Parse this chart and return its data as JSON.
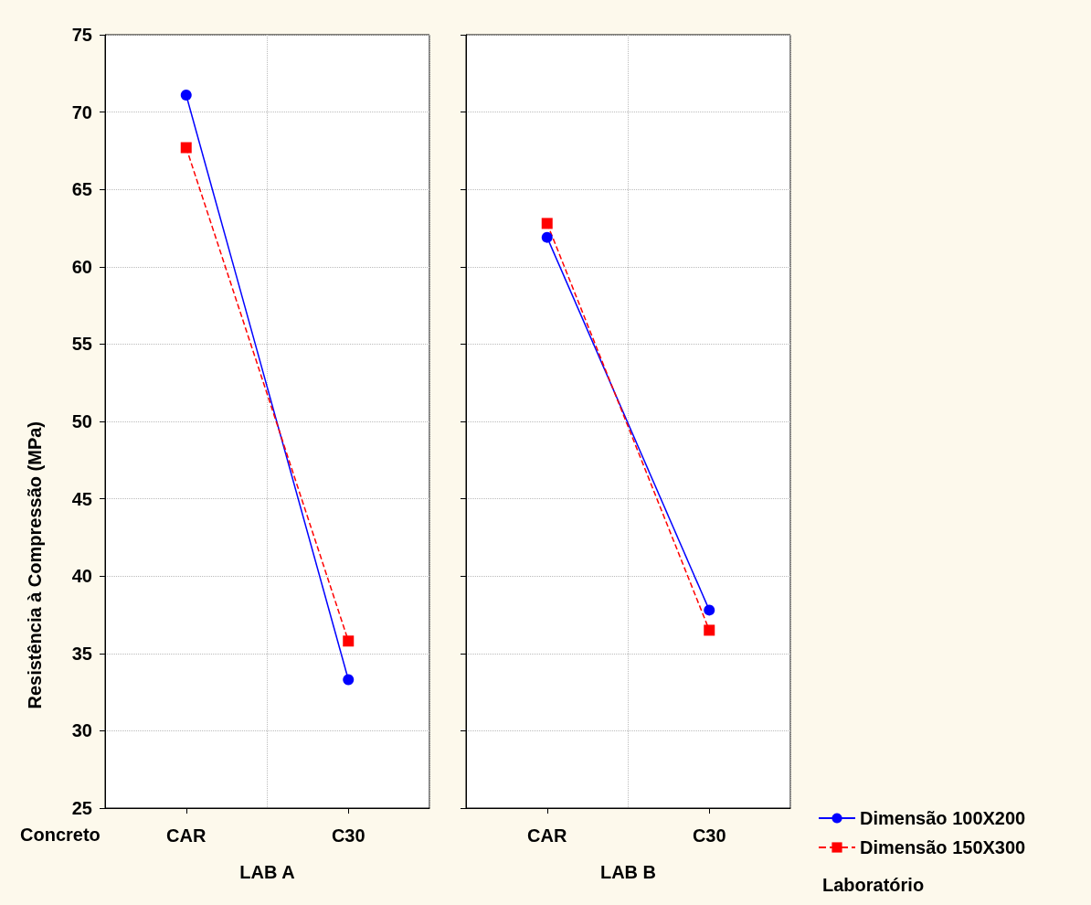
{
  "chart_data": [
    {
      "type": "line",
      "xlabel": "LAB A",
      "categories": [
        "CAR",
        "C30"
      ],
      "ylabel": "Resistência à Compressão (MPa)",
      "ylim": [
        25,
        75
      ],
      "yticks": [
        25,
        30,
        35,
        40,
        45,
        50,
        55,
        60,
        65,
        70,
        75
      ],
      "grid": true,
      "legend": false,
      "annotations": [
        "Concreto"
      ],
      "series": [
        {
          "color": "#0000ff",
          "values": [
            71.1,
            33.3
          ],
          "marker": "circle",
          "line_style": "solid"
        },
        {
          "color": "#ff0000",
          "values": [
            67.7,
            35.8
          ],
          "marker": "square",
          "line_style": "dashed"
        }
      ]
    },
    {
      "type": "line",
      "xlabel": "LAB B",
      "categories": [
        "CAR",
        "C30"
      ],
      "ylim": [
        25,
        75
      ],
      "yticks": [
        25,
        30,
        35,
        40,
        45,
        50,
        55,
        60,
        65,
        70,
        75
      ],
      "grid": true,
      "legend": "bottom right",
      "tick_labels": "x",
      "annotations": [
        "Laboratório"
      ],
      "series": [
        {
          "name": "Dimensão 100X200",
          "color": "#0000ff",
          "values": [
            61.9,
            37.8
          ],
          "marker": "circle",
          "line_style": "solid"
        },
        {
          "name": "Dimensão 150X300",
          "color": "#ff0000",
          "values": [
            62.8,
            36.5
          ],
          "marker": "square",
          "line_style": "dashed"
        }
      ]
    }
  ]
}
